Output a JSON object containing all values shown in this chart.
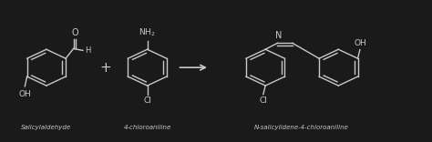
{
  "background_color": "#1a1a1a",
  "text_color": "#c8c8c8",
  "line_color": "#c8c8c8",
  "label1": "Salicylaldehyde",
  "label2": "4-chloroaniline",
  "label3": "N-salicylidene-4-chloroaniline",
  "figsize": [
    4.74,
    1.56
  ],
  "dpi": 100
}
